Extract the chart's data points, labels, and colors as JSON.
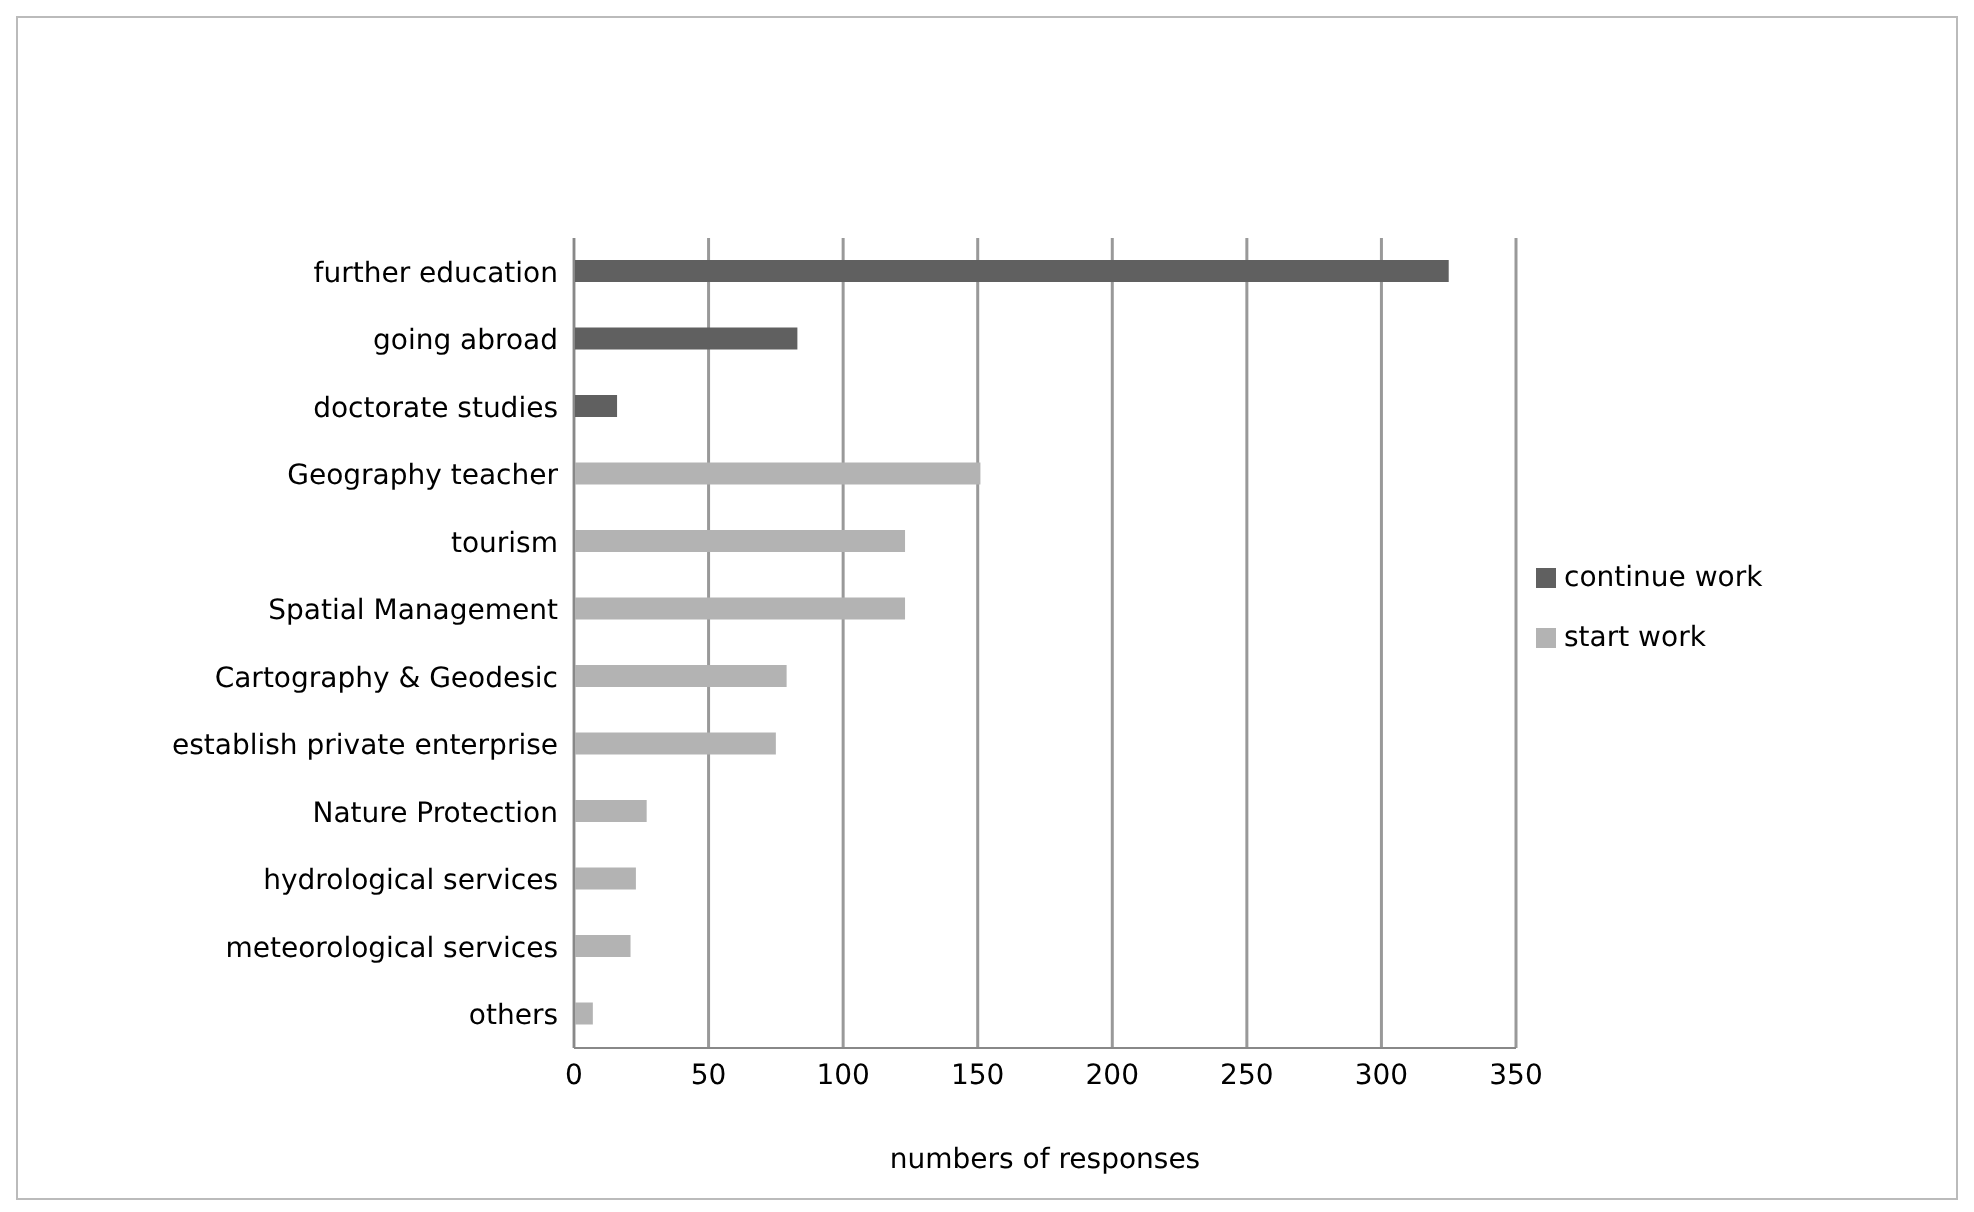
{
  "chart_data": {
    "type": "bar",
    "orientation": "horizontal",
    "stacked": true,
    "xlabel": "numbers of responses",
    "categories": [
      "further education",
      "going abroad",
      "doctorate studies",
      "Geography teacher",
      "tourism",
      "Spatial Management",
      "Cartography & Geodesic",
      "establish private enterprise",
      "Nature Protection",
      "hydrological services",
      "meteorological services",
      "others"
    ],
    "series": [
      {
        "name": "start work",
        "color": "#b3b3b3",
        "values": [
          null,
          null,
          null,
          151,
          123,
          123,
          79,
          75,
          27,
          23,
          21,
          7
        ]
      },
      {
        "name": "continue work",
        "color": "#606060",
        "values": [
          325,
          83,
          16,
          null,
          null,
          null,
          null,
          null,
          null,
          null,
          null,
          null
        ]
      }
    ],
    "xlim": [
      0,
      350
    ],
    "xticks": [
      0,
      50,
      100,
      150,
      200,
      250,
      300,
      350
    ],
    "grid": "x",
    "legend": "right"
  }
}
